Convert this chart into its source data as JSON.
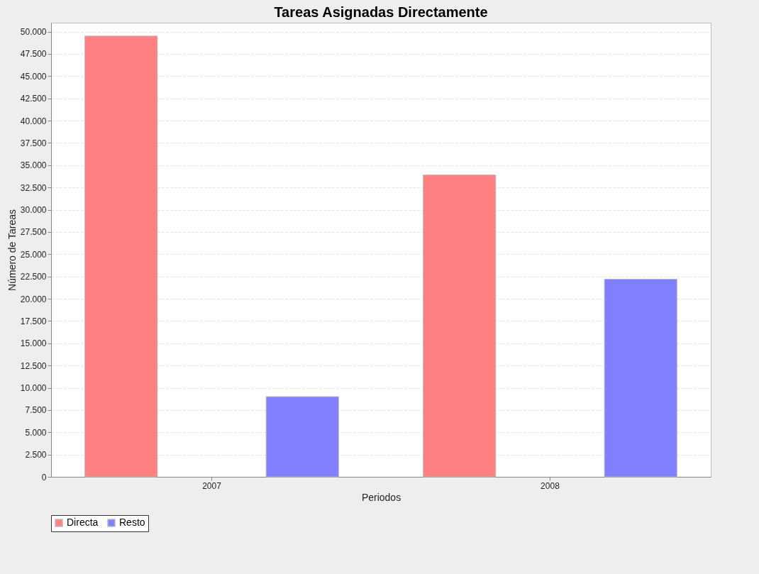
{
  "chart_data": {
    "type": "bar",
    "title": "Tareas Asignadas Directamente",
    "xlabel": "Periodos",
    "ylabel": "Número de Tareas",
    "categories": [
      "2007",
      "2008"
    ],
    "series": [
      {
        "name": "Directa",
        "color": "#ff8080",
        "values": [
          49500,
          33900
        ]
      },
      {
        "name": "Resto",
        "color": "#8080ff",
        "values": [
          9000,
          22200
        ]
      }
    ],
    "ylim": [
      0,
      51000
    ],
    "yticks": [
      0,
      {
        "value": 2500,
        "label": "2.500"
      },
      {
        "value": 5000,
        "label": "5.000"
      },
      {
        "value": 7500,
        "label": "7.500"
      },
      {
        "value": 10000,
        "label": "10.000"
      },
      {
        "value": 12500,
        "label": "12.500"
      },
      {
        "value": 15000,
        "label": "15.000"
      },
      {
        "value": 17500,
        "label": "17.500"
      },
      {
        "value": 20000,
        "label": "20.000"
      },
      {
        "value": 22500,
        "label": "22.500"
      },
      {
        "value": 25000,
        "label": "25.000"
      },
      {
        "value": 27500,
        "label": "27.500"
      },
      {
        "value": 30000,
        "label": "30.000"
      },
      {
        "value": 32500,
        "label": "32.500"
      },
      {
        "value": 35000,
        "label": "35.000"
      },
      {
        "value": 37500,
        "label": "37.500"
      },
      {
        "value": 40000,
        "label": "40.000"
      },
      {
        "value": 42500,
        "label": "42.500"
      },
      {
        "value": 45000,
        "label": "45.000"
      },
      {
        "value": 47500,
        "label": "47.500"
      },
      {
        "value": 50000,
        "label": "50.000"
      }
    ],
    "grid": "y",
    "legend": "bottom"
  }
}
